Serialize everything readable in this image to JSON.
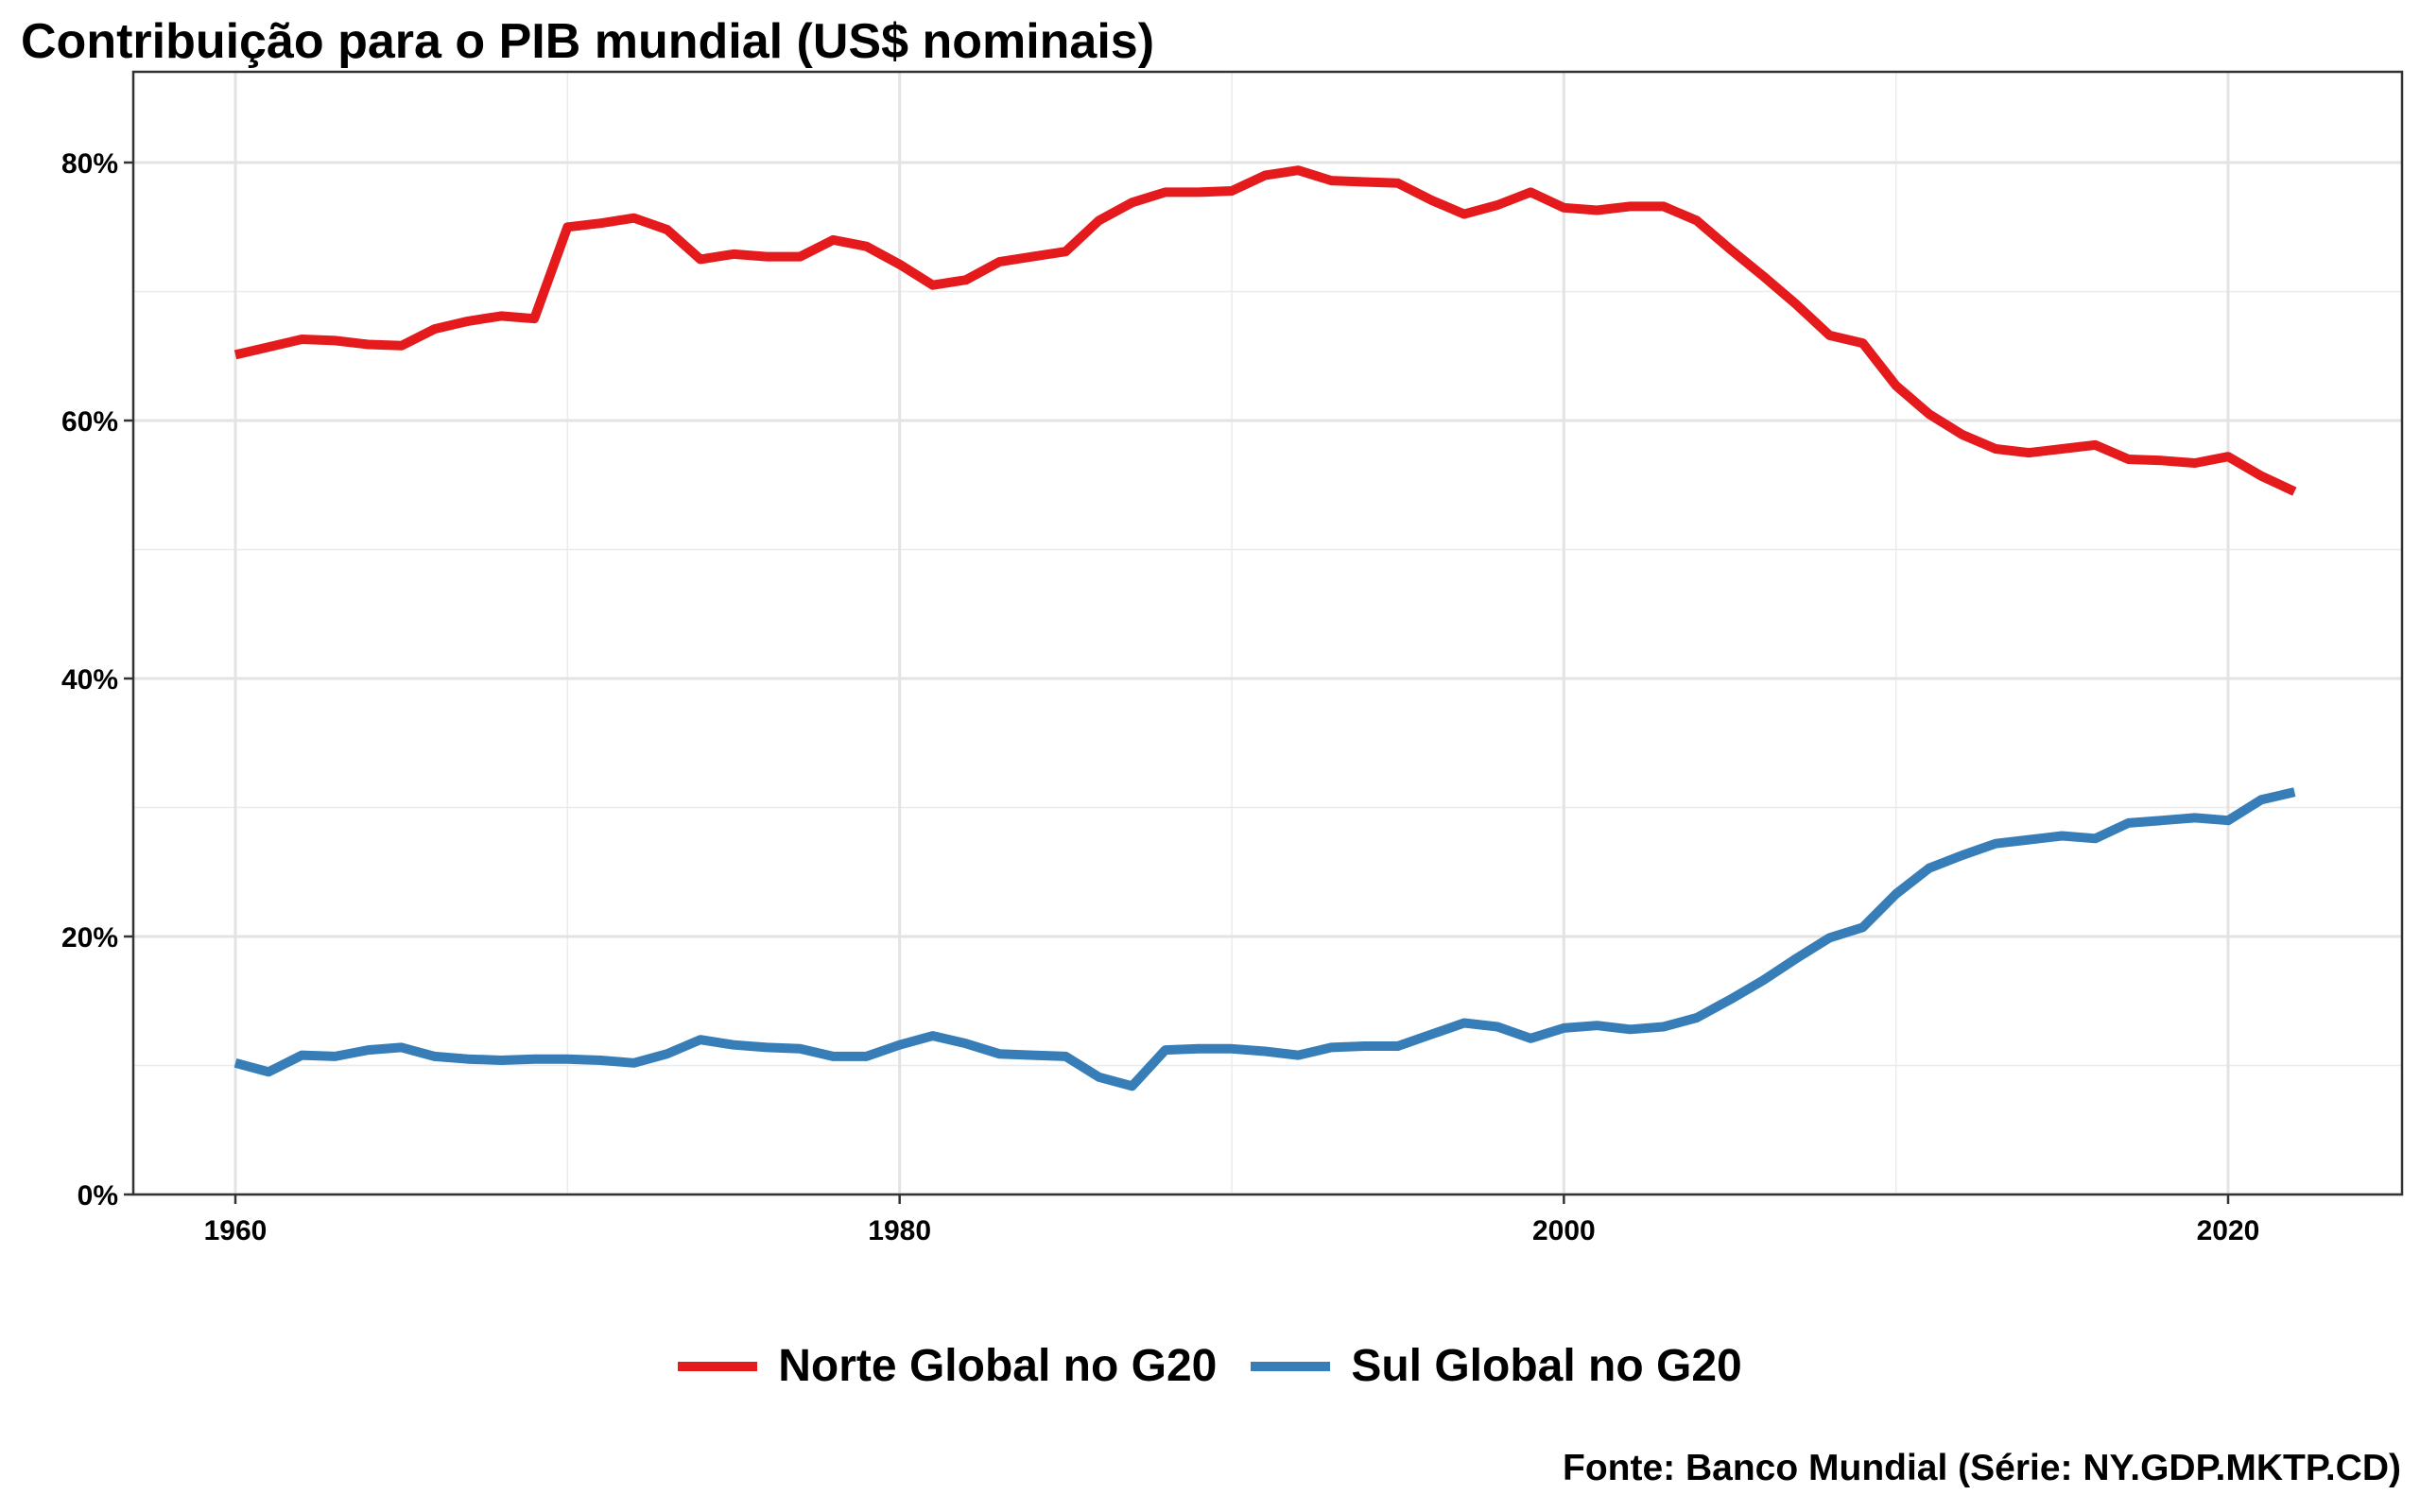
{
  "chart_data": {
    "type": "line",
    "title": "Contribuição para o PIB mundial (US$ nominais)",
    "caption": "Fonte: Banco Mundial (Série: NY.GDP.MKTP.CD)",
    "xlabel": "",
    "ylabel": "",
    "xlim": [
      1957,
      2025
    ],
    "ylim": [
      0,
      0.8
    ],
    "x_ticks": [
      1960,
      1980,
      2000,
      2020
    ],
    "y_ticks": [
      0,
      0.2,
      0.4,
      0.6,
      0.8
    ],
    "y_tick_labels": [
      "0%",
      "20%",
      "40%",
      "60%",
      "80%"
    ],
    "grid": true,
    "legend_position": "bottom",
    "x": [
      1960,
      1961,
      1962,
      1963,
      1964,
      1965,
      1966,
      1967,
      1968,
      1969,
      1970,
      1971,
      1972,
      1973,
      1974,
      1975,
      1976,
      1977,
      1978,
      1979,
      1980,
      1981,
      1982,
      1983,
      1984,
      1985,
      1986,
      1987,
      1988,
      1989,
      1990,
      1991,
      1992,
      1993,
      1994,
      1995,
      1996,
      1997,
      1998,
      1999,
      2000,
      2001,
      2002,
      2003,
      2004,
      2005,
      2006,
      2007,
      2008,
      2009,
      2010,
      2011,
      2012,
      2013,
      2014,
      2015,
      2016,
      2017,
      2018,
      2019,
      2020,
      2021,
      2022
    ],
    "series": [
      {
        "name": "Norte Global no G20",
        "color": "#e41a1c",
        "values": [
          0.651,
          0.657,
          0.663,
          0.662,
          0.659,
          0.658,
          0.671,
          0.677,
          0.681,
          0.679,
          0.75,
          0.753,
          0.757,
          0.748,
          0.725,
          0.729,
          0.727,
          0.727,
          0.74,
          0.735,
          0.721,
          0.705,
          0.709,
          0.723,
          0.727,
          0.731,
          0.755,
          0.769,
          0.777,
          0.777,
          0.778,
          0.79,
          0.794,
          0.786,
          0.785,
          0.784,
          0.771,
          0.76,
          0.767,
          0.777,
          0.765,
          0.763,
          0.766,
          0.766,
          0.755,
          0.733,
          0.712,
          0.69,
          0.666,
          0.66,
          0.627,
          0.605,
          0.589,
          0.578,
          0.575,
          0.578,
          0.581,
          0.57,
          0.569,
          0.567,
          0.572,
          0.557,
          0.545
        ]
      },
      {
        "name": "Sul Global no G20",
        "color": "#377eb8",
        "values": [
          0.102,
          0.095,
          0.108,
          0.107,
          0.112,
          0.114,
          0.107,
          0.105,
          0.104,
          0.105,
          0.105,
          0.104,
          0.102,
          0.109,
          0.12,
          0.116,
          0.114,
          0.113,
          0.107,
          0.107,
          0.116,
          0.123,
          0.117,
          0.109,
          0.108,
          0.107,
          0.091,
          0.084,
          0.112,
          0.113,
          0.113,
          0.111,
          0.108,
          0.114,
          0.115,
          0.115,
          0.124,
          0.133,
          0.13,
          0.121,
          0.129,
          0.131,
          0.128,
          0.13,
          0.137,
          0.151,
          0.166,
          0.183,
          0.199,
          0.207,
          0.233,
          0.253,
          0.263,
          0.272,
          0.275,
          0.278,
          0.276,
          0.288,
          0.29,
          0.292,
          0.29,
          0.306,
          0.312
        ]
      }
    ]
  }
}
